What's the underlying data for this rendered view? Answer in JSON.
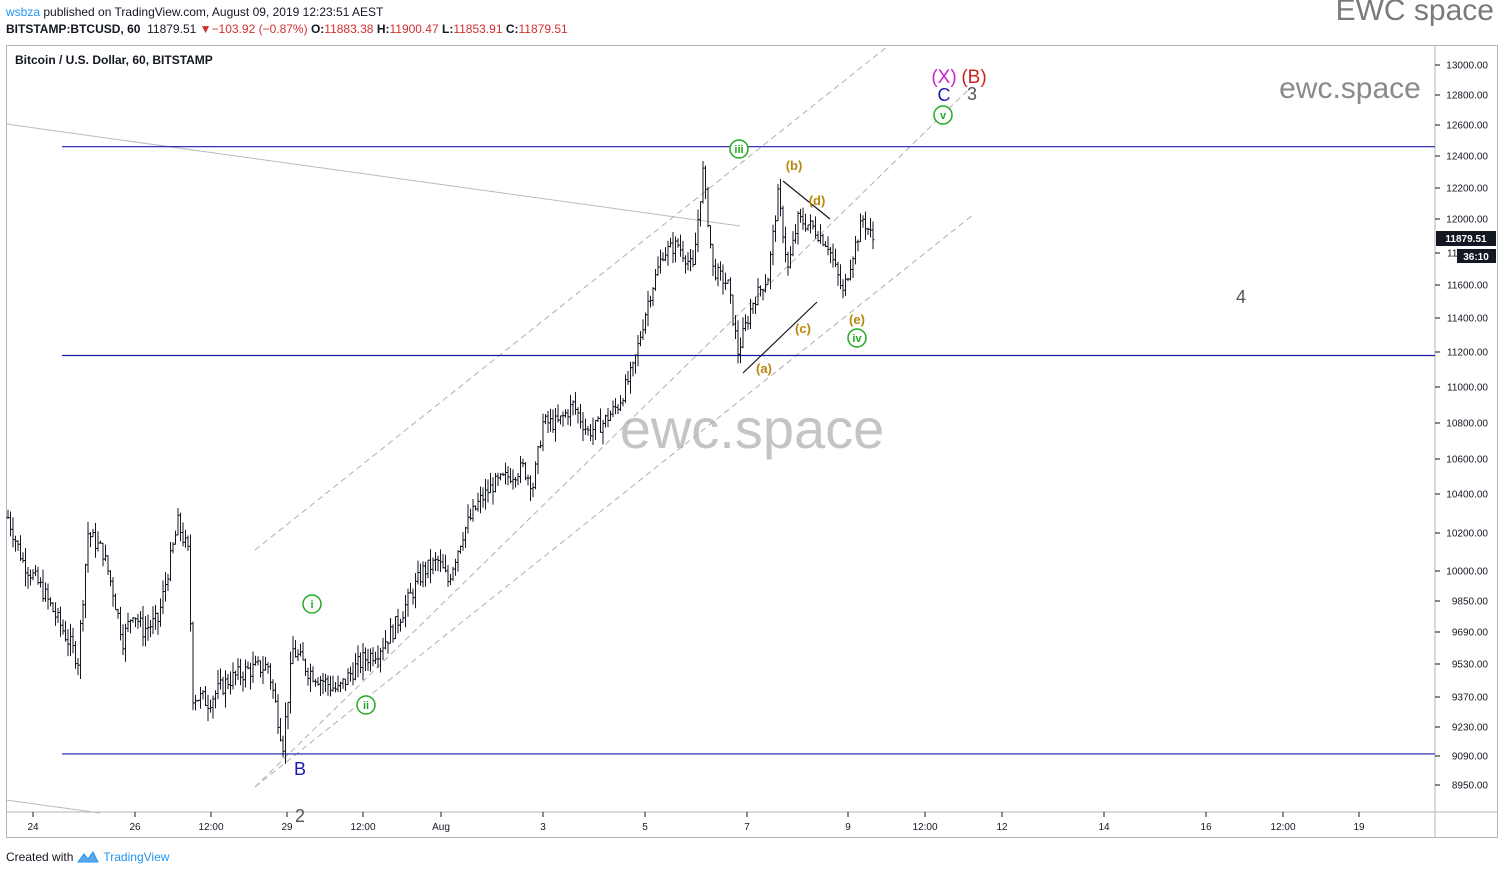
{
  "header": {
    "publisher": "wsbza",
    "published_text": " published on TradingView.com, August 09, 2019 12:23:51 AEST",
    "symbol": "BITSTAMP:BTCUSD, 60",
    "last": "11879.51",
    "change": "−103.92 (−0.87%)",
    "o_label": "O:",
    "o_value": "11883.38",
    "h_label": "H:",
    "h_value": "11900.47",
    "l_label": "L:",
    "l_value": "11853.91",
    "c_label": "C:",
    "c_value": "11879.51",
    "brand": "EWC space"
  },
  "chart_title": "Bitcoin / U.S. Dollar, 60, BITSTAMP",
  "watermark": "ewc.space",
  "small_watermark": "ewc.space",
  "price_tag": "11879.51",
  "countdown_tag": "36:10",
  "footer": {
    "created_with": "Created with",
    "tradingview": "TradingView"
  },
  "colors": {
    "up": "#131722",
    "hline": "#1a1aaa",
    "channel": "#b0b0b0",
    "wave_green": "#22aa22",
    "wave_orange": "#b8860b",
    "wave_blue": "#1a1aaa",
    "wave_magenta": "#cc22cc",
    "wave_red": "#cc2222"
  },
  "chart_data": {
    "type": "ohlc",
    "title": "Bitcoin / U.S. Dollar, 60, BITSTAMP",
    "yticks": [
      "13000.00",
      "12800.00",
      "12600.00",
      "12400.00",
      "12200.00",
      "12000.00",
      "11800.00",
      "11600.00",
      "11400.00",
      "11200.00",
      "11000.00",
      "10800.00",
      "10600.00",
      "10400.00",
      "10200.00",
      "10000.00",
      "9850.00",
      "9690.00",
      "9530.00",
      "9370.00",
      "9230.00",
      "9090.00",
      "8950.00"
    ],
    "xticks": [
      "24",
      "26",
      "12:00",
      "29",
      "12:00",
      "Aug",
      "3",
      "5",
      "7",
      "9",
      "12:00",
      "12",
      "14",
      "16",
      "12:00",
      "19"
    ],
    "horizontal_levels": [
      12460,
      11180,
      9100
    ],
    "path": [
      [
        0,
        10280
      ],
      [
        6,
        10050
      ],
      [
        14,
        9900
      ],
      [
        22,
        9700
      ],
      [
        28,
        9550
      ],
      [
        32,
        10200
      ],
      [
        38,
        10100
      ],
      [
        42,
        9900
      ],
      [
        46,
        9650
      ],
      [
        50,
        9800
      ],
      [
        54,
        9700
      ],
      [
        60,
        9750
      ],
      [
        68,
        10250
      ],
      [
        72,
        10100
      ],
      [
        74,
        9380
      ],
      [
        80,
        9350
      ],
      [
        88,
        9450
      ],
      [
        96,
        9500
      ],
      [
        104,
        9520
      ],
      [
        110,
        9150
      ],
      [
        114,
        9600
      ],
      [
        120,
        9500
      ],
      [
        126,
        9450
      ],
      [
        132,
        9400
      ],
      [
        138,
        9500
      ],
      [
        142,
        9550
      ],
      [
        148,
        9600
      ],
      [
        154,
        9700
      ],
      [
        160,
        9850
      ],
      [
        166,
        10000
      ],
      [
        172,
        10050
      ],
      [
        176,
        9950
      ],
      [
        182,
        10200
      ],
      [
        188,
        10350
      ],
      [
        194,
        10450
      ],
      [
        200,
        10500
      ],
      [
        206,
        10550
      ],
      [
        210,
        10450
      ],
      [
        214,
        10800
      ],
      [
        220,
        10800
      ],
      [
        226,
        10900
      ],
      [
        232,
        10750
      ],
      [
        238,
        10800
      ],
      [
        244,
        10900
      ],
      [
        250,
        11100
      ],
      [
        256,
        11500
      ],
      [
        262,
        11800
      ],
      [
        268,
        11850
      ],
      [
        274,
        11700
      ],
      [
        278,
        12300
      ],
      [
        282,
        11700
      ],
      [
        288,
        11600
      ],
      [
        292,
        11200
      ],
      [
        298,
        11500
      ],
      [
        304,
        11650
      ],
      [
        308,
        12150
      ],
      [
        312,
        11700
      ],
      [
        316,
        12000
      ],
      [
        322,
        11950
      ],
      [
        328,
        11850
      ],
      [
        334,
        11550
      ],
      [
        338,
        11800
      ],
      [
        342,
        12000
      ],
      [
        346,
        11880
      ]
    ],
    "annotations": [
      {
        "text": "i",
        "style": "circle",
        "color": "#22aa22"
      },
      {
        "text": "ii",
        "style": "circle",
        "color": "#22aa22"
      },
      {
        "text": "iii",
        "style": "circle",
        "color": "#22aa22"
      },
      {
        "text": "iv",
        "style": "circle",
        "color": "#22aa22"
      },
      {
        "text": "v",
        "style": "circle",
        "color": "#22aa22"
      },
      {
        "text": "(a)",
        "color": "#b8860b"
      },
      {
        "text": "(b)",
        "color": "#b8860b"
      },
      {
        "text": "(c)",
        "color": "#b8860b"
      },
      {
        "text": "(d)",
        "color": "#b8860b"
      },
      {
        "text": "(e)",
        "color": "#b8860b"
      },
      {
        "text": "B",
        "color": "#1a1aaa"
      },
      {
        "text": "C",
        "color": "#1a1aaa"
      },
      {
        "text": "(X)",
        "color": "#cc22cc"
      },
      {
        "text": "(B)",
        "color": "#cc2222"
      },
      {
        "text": "3",
        "color": "#555555"
      },
      {
        "text": "4",
        "color": "#555555"
      },
      {
        "text": "2",
        "color": "#555555"
      }
    ]
  }
}
